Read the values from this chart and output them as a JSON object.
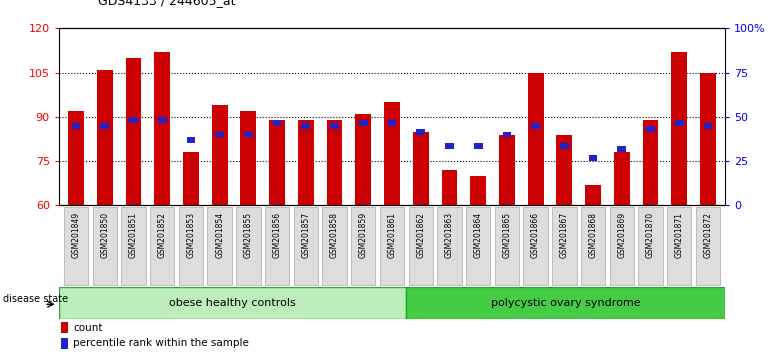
{
  "title": "GDS4133 / 244605_at",
  "samples": [
    "GSM201849",
    "GSM201850",
    "GSM201851",
    "GSM201852",
    "GSM201853",
    "GSM201854",
    "GSM201855",
    "GSM201856",
    "GSM201857",
    "GSM201858",
    "GSM201859",
    "GSM201861",
    "GSM201862",
    "GSM201863",
    "GSM201864",
    "GSM201865",
    "GSM201866",
    "GSM201867",
    "GSM201868",
    "GSM201869",
    "GSM201870",
    "GSM201871",
    "GSM201872"
  ],
  "counts": [
    92,
    106,
    110,
    112,
    78,
    94,
    92,
    89,
    89,
    89,
    91,
    95,
    85,
    72,
    70,
    84,
    105,
    84,
    67,
    78,
    89,
    112,
    105
  ],
  "percentile_ranks": [
    87,
    87,
    89,
    89,
    82,
    84,
    84,
    88,
    87,
    87,
    88,
    88,
    85,
    80,
    80,
    84,
    87,
    80,
    76,
    79,
    86,
    88,
    87
  ],
  "group1_label": "obese healthy controls",
  "group1_count": 12,
  "group2_label": "polycystic ovary syndrome",
  "group2_count": 11,
  "disease_state_label": "disease state",
  "ylim_left": [
    60,
    120
  ],
  "ylim_right": [
    0,
    100
  ],
  "yticks_left": [
    60,
    75,
    90,
    105,
    120
  ],
  "yticks_right": [
    0,
    25,
    50,
    75,
    100
  ],
  "ytick_labels_right": [
    "0",
    "25",
    "50",
    "75",
    "100%"
  ],
  "bar_color": "#cc0000",
  "square_color": "#2222cc",
  "group1_color": "#bbeebb",
  "group2_color": "#44cc44",
  "legend_count_label": "count",
  "legend_pct_label": "percentile rank within the sample",
  "bar_width": 0.55
}
